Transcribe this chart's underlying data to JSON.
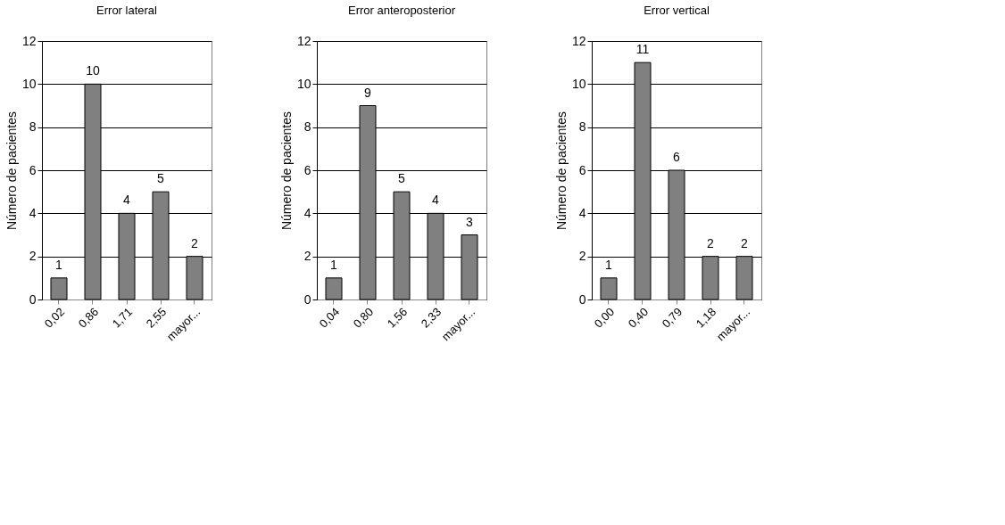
{
  "chart_data": [
    {
      "type": "bar",
      "title": "Error lateral",
      "ylabel": "Número de pacientes",
      "categories": [
        "0,02",
        "0,86",
        "1,71",
        "2,55",
        "mayor..."
      ],
      "values": [
        1,
        10,
        4,
        5,
        2
      ],
      "color": "#808080",
      "ylim": [
        0,
        12
      ],
      "yticks": [
        0,
        2,
        4,
        6,
        8,
        10,
        12
      ],
      "grid": "y",
      "data_labels": true
    },
    {
      "type": "bar",
      "title": "Error anteroposterior",
      "ylabel": "Número de pacientes",
      "categories": [
        "0,04",
        "0,80",
        "1,56",
        "2,33",
        "mayor..."
      ],
      "values": [
        1,
        9,
        5,
        4,
        3
      ],
      "color": "#808080",
      "ylim": [
        0,
        12
      ],
      "yticks": [
        0,
        2,
        4,
        6,
        8,
        10,
        12
      ],
      "grid": "y",
      "data_labels": true
    },
    {
      "type": "bar",
      "title": "Error vertical",
      "ylabel": "Número de pacientes",
      "categories": [
        "0,00",
        "0,40",
        "0,79",
        "1,18",
        "mayor..."
      ],
      "values": [
        1,
        11,
        6,
        2,
        2
      ],
      "color": "#808080",
      "ylim": [
        0,
        12
      ],
      "yticks": [
        0,
        2,
        4,
        6,
        8,
        10,
        12
      ],
      "grid": "y",
      "data_labels": true
    }
  ]
}
